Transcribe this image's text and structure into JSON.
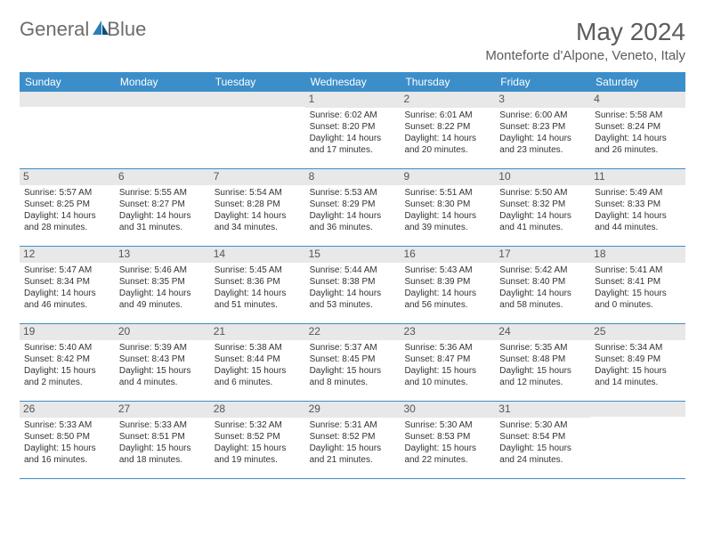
{
  "brand": {
    "part1": "General",
    "part2": "Blue"
  },
  "title": "May 2024",
  "location": "Monteforte d'Alpone, Veneto, Italy",
  "colors": {
    "header_bg": "#3c8ec9",
    "header_text": "#ffffff",
    "daynum_bg": "#e8e8e8",
    "daynum_text": "#555555",
    "body_text": "#333333",
    "title_text": "#5c5c5c",
    "logo_gray": "#6c6c6c",
    "logo_blue": "#2a7fba"
  },
  "day_headers": [
    "Sunday",
    "Monday",
    "Tuesday",
    "Wednesday",
    "Thursday",
    "Friday",
    "Saturday"
  ],
  "weeks": [
    [
      {
        "n": "",
        "sr": "",
        "ss": "",
        "dl": ""
      },
      {
        "n": "",
        "sr": "",
        "ss": "",
        "dl": ""
      },
      {
        "n": "",
        "sr": "",
        "ss": "",
        "dl": ""
      },
      {
        "n": "1",
        "sr": "6:02 AM",
        "ss": "8:20 PM",
        "dl": "14 hours and 17 minutes."
      },
      {
        "n": "2",
        "sr": "6:01 AM",
        "ss": "8:22 PM",
        "dl": "14 hours and 20 minutes."
      },
      {
        "n": "3",
        "sr": "6:00 AM",
        "ss": "8:23 PM",
        "dl": "14 hours and 23 minutes."
      },
      {
        "n": "4",
        "sr": "5:58 AM",
        "ss": "8:24 PM",
        "dl": "14 hours and 26 minutes."
      }
    ],
    [
      {
        "n": "5",
        "sr": "5:57 AM",
        "ss": "8:25 PM",
        "dl": "14 hours and 28 minutes."
      },
      {
        "n": "6",
        "sr": "5:55 AM",
        "ss": "8:27 PM",
        "dl": "14 hours and 31 minutes."
      },
      {
        "n": "7",
        "sr": "5:54 AM",
        "ss": "8:28 PM",
        "dl": "14 hours and 34 minutes."
      },
      {
        "n": "8",
        "sr": "5:53 AM",
        "ss": "8:29 PM",
        "dl": "14 hours and 36 minutes."
      },
      {
        "n": "9",
        "sr": "5:51 AM",
        "ss": "8:30 PM",
        "dl": "14 hours and 39 minutes."
      },
      {
        "n": "10",
        "sr": "5:50 AM",
        "ss": "8:32 PM",
        "dl": "14 hours and 41 minutes."
      },
      {
        "n": "11",
        "sr": "5:49 AM",
        "ss": "8:33 PM",
        "dl": "14 hours and 44 minutes."
      }
    ],
    [
      {
        "n": "12",
        "sr": "5:47 AM",
        "ss": "8:34 PM",
        "dl": "14 hours and 46 minutes."
      },
      {
        "n": "13",
        "sr": "5:46 AM",
        "ss": "8:35 PM",
        "dl": "14 hours and 49 minutes."
      },
      {
        "n": "14",
        "sr": "5:45 AM",
        "ss": "8:36 PM",
        "dl": "14 hours and 51 minutes."
      },
      {
        "n": "15",
        "sr": "5:44 AM",
        "ss": "8:38 PM",
        "dl": "14 hours and 53 minutes."
      },
      {
        "n": "16",
        "sr": "5:43 AM",
        "ss": "8:39 PM",
        "dl": "14 hours and 56 minutes."
      },
      {
        "n": "17",
        "sr": "5:42 AM",
        "ss": "8:40 PM",
        "dl": "14 hours and 58 minutes."
      },
      {
        "n": "18",
        "sr": "5:41 AM",
        "ss": "8:41 PM",
        "dl": "15 hours and 0 minutes."
      }
    ],
    [
      {
        "n": "19",
        "sr": "5:40 AM",
        "ss": "8:42 PM",
        "dl": "15 hours and 2 minutes."
      },
      {
        "n": "20",
        "sr": "5:39 AM",
        "ss": "8:43 PM",
        "dl": "15 hours and 4 minutes."
      },
      {
        "n": "21",
        "sr": "5:38 AM",
        "ss": "8:44 PM",
        "dl": "15 hours and 6 minutes."
      },
      {
        "n": "22",
        "sr": "5:37 AM",
        "ss": "8:45 PM",
        "dl": "15 hours and 8 minutes."
      },
      {
        "n": "23",
        "sr": "5:36 AM",
        "ss": "8:47 PM",
        "dl": "15 hours and 10 minutes."
      },
      {
        "n": "24",
        "sr": "5:35 AM",
        "ss": "8:48 PM",
        "dl": "15 hours and 12 minutes."
      },
      {
        "n": "25",
        "sr": "5:34 AM",
        "ss": "8:49 PM",
        "dl": "15 hours and 14 minutes."
      }
    ],
    [
      {
        "n": "26",
        "sr": "5:33 AM",
        "ss": "8:50 PM",
        "dl": "15 hours and 16 minutes."
      },
      {
        "n": "27",
        "sr": "5:33 AM",
        "ss": "8:51 PM",
        "dl": "15 hours and 18 minutes."
      },
      {
        "n": "28",
        "sr": "5:32 AM",
        "ss": "8:52 PM",
        "dl": "15 hours and 19 minutes."
      },
      {
        "n": "29",
        "sr": "5:31 AM",
        "ss": "8:52 PM",
        "dl": "15 hours and 21 minutes."
      },
      {
        "n": "30",
        "sr": "5:30 AM",
        "ss": "8:53 PM",
        "dl": "15 hours and 22 minutes."
      },
      {
        "n": "31",
        "sr": "5:30 AM",
        "ss": "8:54 PM",
        "dl": "15 hours and 24 minutes."
      },
      {
        "n": "",
        "sr": "",
        "ss": "",
        "dl": ""
      }
    ]
  ],
  "labels": {
    "sunrise_prefix": "Sunrise: ",
    "sunset_prefix": "Sunset: ",
    "daylight_prefix": "Daylight: "
  }
}
